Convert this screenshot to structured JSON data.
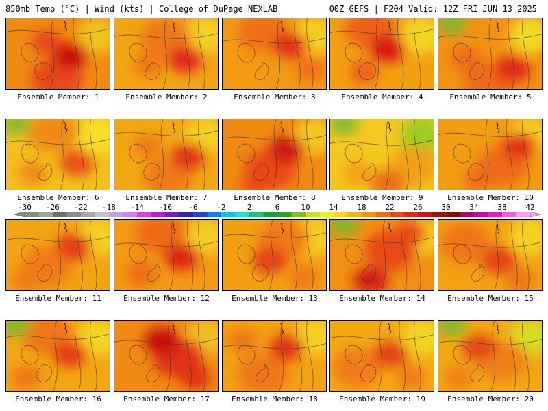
{
  "header": {
    "left": "850mb Temp (°C) | Wind (kts) | College of DuPage NEXLAB",
    "right": "00Z GEFS | F204 Valid: 12Z FRI JUN 13 2025"
  },
  "panels": [
    {
      "label": "Ensemble Member: 1",
      "base": "#f08a10",
      "hot": "#c81010",
      "warm": "#e8461a",
      "cool": "#f2c21c",
      "green": false
    },
    {
      "label": "Ensemble Member: 2",
      "base": "#f2a412",
      "hot": "#e0261a",
      "warm": "#f07818",
      "cool": "#f4d020",
      "green": false
    },
    {
      "label": "Ensemble Member: 3",
      "base": "#f29a12",
      "hot": "#e23618",
      "warm": "#f07018",
      "cool": "#f4d020",
      "green": false
    },
    {
      "label": "Ensemble Member: 4",
      "base": "#f2a012",
      "hot": "#d81818",
      "warm": "#ee6018",
      "cool": "#f4d424",
      "green": false
    },
    {
      "label": "Ensemble Member: 5",
      "base": "#f29212",
      "hot": "#e02a18",
      "warm": "#ee6a18",
      "cool": "#f0dc20",
      "green": true
    },
    {
      "label": "Ensemble Member: 6",
      "base": "#f4c01c",
      "hot": "#e85018",
      "warm": "#f08a14",
      "cool": "#f6e028",
      "green": true
    },
    {
      "label": "Ensemble Member: 7",
      "base": "#f2a812",
      "hot": "#e03418",
      "warm": "#ef7a16",
      "cool": "#f5d222",
      "green": false
    },
    {
      "label": "Ensemble Member: 8",
      "base": "#f08a12",
      "hot": "#d01818",
      "warm": "#e84a18",
      "cool": "#f2c820",
      "green": false
    },
    {
      "label": "Ensemble Member: 9",
      "base": "#f4c81e",
      "hot": "#ee6a16",
      "warm": "#f2a014",
      "cool": "#9ccc24",
      "green": true
    },
    {
      "label": "Ensemble Member: 10",
      "base": "#f29c12",
      "hot": "#e23018",
      "warm": "#ee6a18",
      "cool": "#f4d020",
      "green": false
    },
    {
      "label": "Ensemble Member: 11",
      "base": "#f2a412",
      "hot": "#e43a18",
      "warm": "#ef7a16",
      "cool": "#f4d222",
      "green": false
    },
    {
      "label": "Ensemble Member: 12",
      "base": "#f29a12",
      "hot": "#dc2418",
      "warm": "#ee6a18",
      "cool": "#f4ce20",
      "green": false
    },
    {
      "label": "Ensemble Member: 13",
      "base": "#f2a012",
      "hot": "#e44218",
      "warm": "#f07818",
      "cool": "#f4d020",
      "green": false
    },
    {
      "label": "Ensemble Member: 14",
      "base": "#f09012",
      "hot": "#d61a18",
      "warm": "#e84a18",
      "cool": "#f2d020",
      "green": true
    },
    {
      "label": "Ensemble Member: 15",
      "base": "#f2a212",
      "hot": "#e44218",
      "warm": "#ef7416",
      "cool": "#f4d222",
      "green": false
    },
    {
      "label": "Ensemble Member: 16",
      "base": "#f2a612",
      "hot": "#e44018",
      "warm": "#ef7616",
      "cool": "#f4d424",
      "green": true
    },
    {
      "label": "Ensemble Member: 17",
      "base": "#f08a12",
      "hot": "#c81010",
      "warm": "#e03018",
      "cool": "#f2c020",
      "green": false
    },
    {
      "label": "Ensemble Member: 18",
      "base": "#f2a212",
      "hot": "#e23418",
      "warm": "#ef7616",
      "cool": "#f4d222",
      "green": false
    },
    {
      "label": "Ensemble Member: 19",
      "base": "#f2aa14",
      "hot": "#e44418",
      "warm": "#f07c16",
      "cool": "#f4d424",
      "green": false
    },
    {
      "label": "Ensemble Member: 20",
      "base": "#f2a812",
      "hot": "#e44818",
      "warm": "#f08016",
      "cool": "#d8dc20",
      "green": true
    }
  ],
  "colorbar": {
    "ticks": [
      "-30",
      "-26",
      "-22",
      "-18",
      "-14",
      "-10",
      "-6",
      "-2",
      "2",
      "6",
      "10",
      "14",
      "18",
      "22",
      "26",
      "30",
      "34",
      "38",
      "42"
    ],
    "colors": [
      "#7f8f7f",
      "#9aa99a",
      "#6e6e6e",
      "#8c8c8c",
      "#a8a8a8",
      "#c4c4c4",
      "#c8a0e0",
      "#d080f0",
      "#e040e0",
      "#b020e0",
      "#7020c0",
      "#3020b0",
      "#2040e0",
      "#1080f0",
      "#10c0f0",
      "#20e0d0",
      "#20c080",
      "#10a040",
      "#30a020",
      "#80c020",
      "#c8e020",
      "#f0f020",
      "#f6d420",
      "#f4b414",
      "#f29212",
      "#ee6e18",
      "#e84a18",
      "#e02a18",
      "#c81818",
      "#a01010",
      "#801010",
      "#a0106a",
      "#c010a0",
      "#e020c0",
      "#f060e0",
      "#f8a0f0"
    ]
  }
}
